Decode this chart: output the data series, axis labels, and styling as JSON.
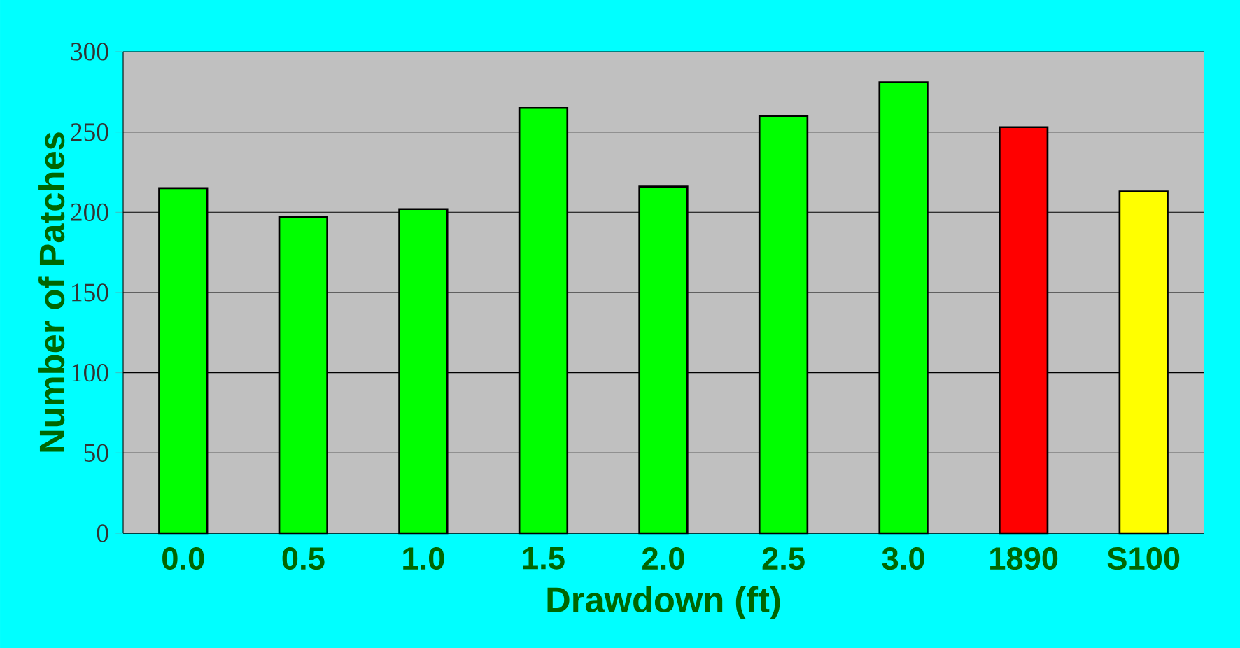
{
  "chart_data": {
    "type": "bar",
    "xlabel": "Drawdown (ft)",
    "ylabel": "Number of Patches",
    "categories": [
      "0.0",
      "0.5",
      "1.0",
      "1.5",
      "2.0",
      "2.5",
      "3.0",
      "1890",
      "S100"
    ],
    "values": [
      215,
      197,
      202,
      265,
      216,
      260,
      281,
      253,
      213
    ],
    "colors": [
      "#00ff00",
      "#00ff00",
      "#00ff00",
      "#00ff00",
      "#00ff00",
      "#00ff00",
      "#00ff00",
      "#ff0000",
      "#ffff00"
    ],
    "ylim": [
      0,
      300
    ],
    "yticks": [
      0,
      50,
      100,
      150,
      200,
      250,
      300
    ],
    "grid": "y"
  }
}
